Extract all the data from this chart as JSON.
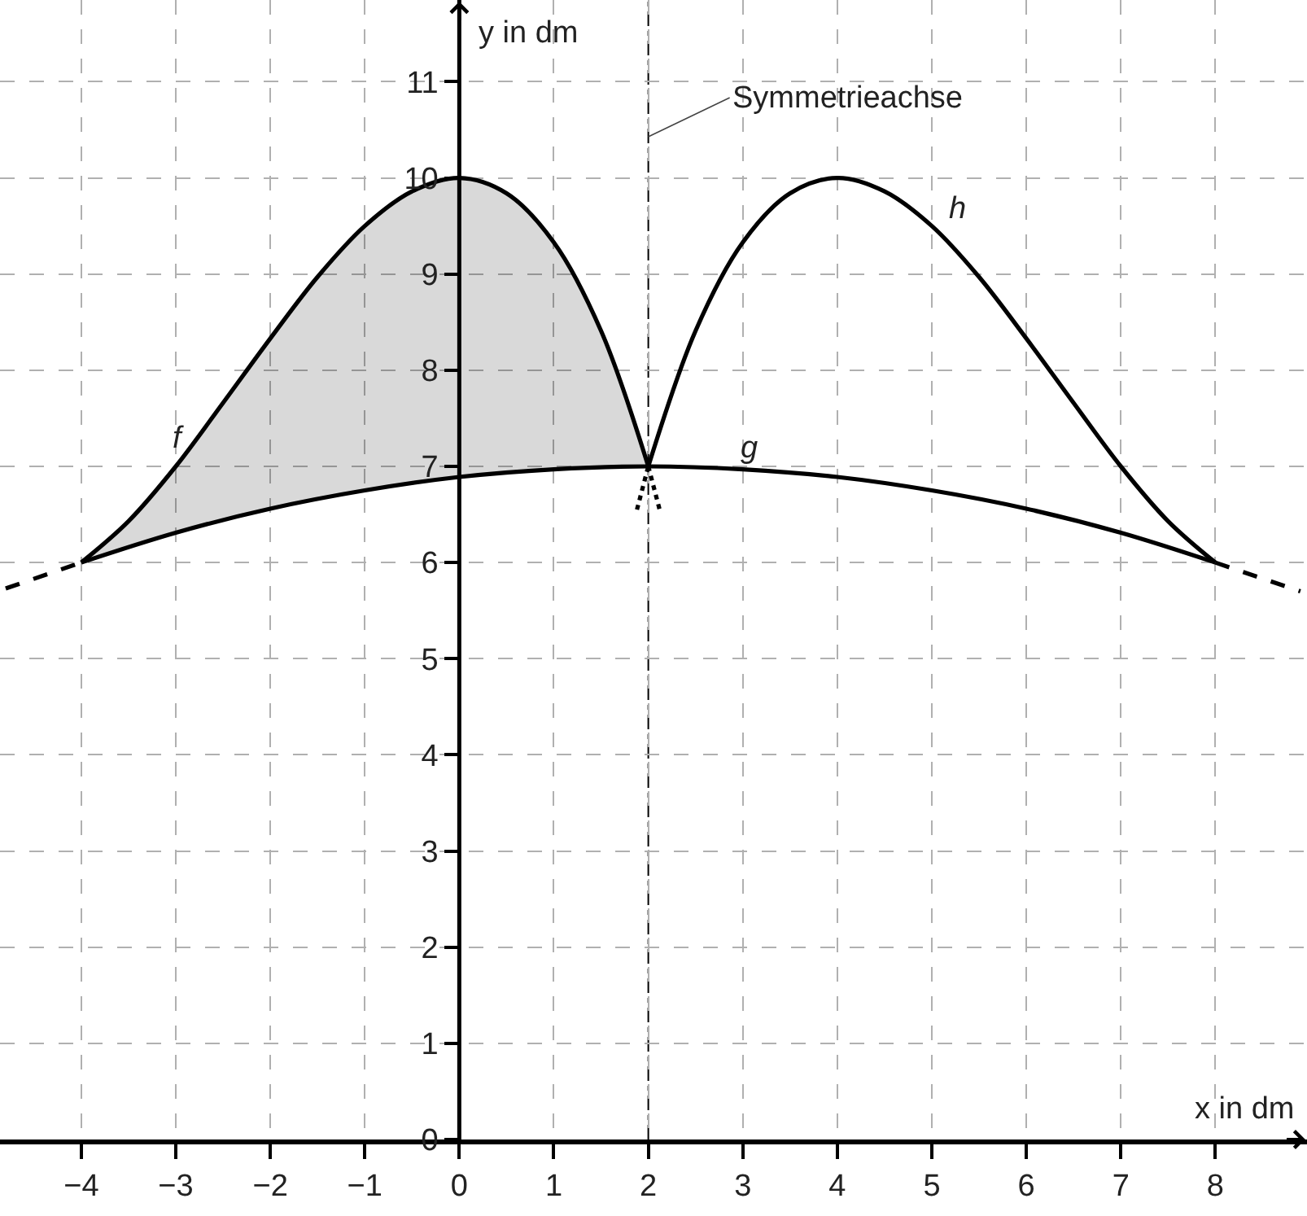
{
  "chart_data": {
    "type": "line",
    "xlabel": "x in dm",
    "ylabel": "y in dm",
    "xlim": [
      -4.86,
      8.97
    ],
    "ylim": [
      0,
      11.85
    ],
    "xticks": [
      {
        "value": -4,
        "label": "−4"
      },
      {
        "value": -3,
        "label": "−3"
      },
      {
        "value": -2,
        "label": "−2"
      },
      {
        "value": -1,
        "label": "−1"
      },
      0,
      1,
      2,
      3,
      4,
      5,
      6,
      7,
      8
    ],
    "yticks": [
      0,
      1,
      2,
      3,
      4,
      5,
      6,
      7,
      8,
      9,
      10,
      11
    ],
    "grid": true,
    "legend": false,
    "marker": "none",
    "series": [
      {
        "name": "f",
        "color": "#000000",
        "line_style": "solid",
        "x": [
          -4,
          -3.5,
          -3,
          -2.5,
          -2,
          -1.5,
          -1,
          -0.5,
          0,
          0.5,
          1,
          1.5,
          2
        ],
        "values": [
          6,
          6.43,
          7,
          7.66,
          8.33,
          8.97,
          9.5,
          9.86,
          10,
          9.84,
          9.33,
          8.41,
          7
        ],
        "lower": [
          6,
          6.16,
          6.31,
          6.44,
          6.56,
          6.66,
          6.75,
          6.83,
          6.89,
          6.94,
          6.97,
          6.99,
          7
        ],
        "upper": [
          6,
          6.43,
          7,
          7.66,
          8.33,
          8.97,
          9.5,
          9.86,
          10,
          9.84,
          9.33,
          8.41,
          7
        ]
      },
      {
        "name": "g",
        "color": "#000000",
        "line_style": "solid",
        "x": [
          -4,
          -3,
          -2,
          -1,
          0,
          1,
          2,
          3,
          4,
          5,
          6,
          7,
          8
        ],
        "values": [
          6,
          6.31,
          6.56,
          6.75,
          6.89,
          6.97,
          7,
          6.97,
          6.89,
          6.75,
          6.56,
          6.31,
          6
        ]
      },
      {
        "name": "h",
        "color": "#000000",
        "line_style": "solid",
        "x": [
          2,
          2.5,
          3,
          3.5,
          4,
          4.5,
          5,
          5.5,
          6,
          6.5,
          7,
          7.5,
          8
        ],
        "values": [
          7,
          8.41,
          9.33,
          9.84,
          10,
          9.86,
          9.5,
          8.97,
          8.33,
          7.66,
          7,
          6.43,
          6
        ]
      },
      {
        "color": "#000000",
        "line_style": "dashed",
        "x": [
          -4.8,
          -4
        ],
        "values": [
          5.73,
          6
        ]
      },
      {
        "color": "#000000",
        "line_style": "dashed",
        "x": [
          8,
          8.9
        ],
        "values": [
          6,
          5.7
        ]
      },
      {
        "color": "#000000",
        "line_style": "dotted",
        "x": [
          2,
          2.12
        ],
        "values": [
          7,
          6.55
        ]
      },
      {
        "color": "#000000",
        "line_style": "dotted",
        "x": [
          1.88,
          2
        ],
        "values": [
          6.55,
          7
        ]
      }
    ],
    "ref_lines": [
      {
        "axis": "x",
        "value": 2,
        "label": "Symmetrieachse",
        "line_style": "dashdot",
        "color": "#000000"
      }
    ]
  }
}
